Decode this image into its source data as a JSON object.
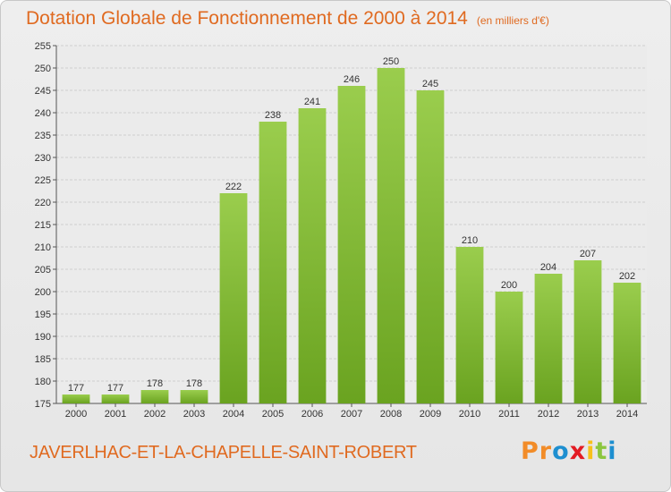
{
  "title": "Dotation Globale de Fonctionnement de 2000 à 2014",
  "unit": "(en milliers d'€)",
  "commune": "JAVERLHAC-ET-LA-CHAPELLE-SAINT-ROBERT",
  "logo": {
    "letters": [
      "P",
      "r",
      "o",
      "x",
      "i",
      "t",
      "i"
    ],
    "colors": [
      "#f28c28",
      "#f28c28",
      "#1e8fd0",
      "#e31b23",
      "#f7c11b",
      "#8cc63f",
      "#1e8fd0"
    ]
  },
  "chart_data": {
    "type": "bar",
    "categories": [
      "2000",
      "2001",
      "2002",
      "2003",
      "2004",
      "2005",
      "2006",
      "2007",
      "2008",
      "2009",
      "2010",
      "2011",
      "2012",
      "2013",
      "2014"
    ],
    "values": [
      177,
      177,
      178,
      178,
      222,
      238,
      241,
      246,
      250,
      245,
      210,
      200,
      204,
      207,
      202
    ],
    "ylim": [
      175,
      255
    ],
    "yticks": [
      175,
      180,
      185,
      190,
      195,
      200,
      205,
      210,
      215,
      220,
      225,
      230,
      235,
      240,
      245,
      250,
      255
    ],
    "grid": true,
    "bar_color_top": "#9acd4d",
    "bar_color_bottom": "#6aa320"
  }
}
